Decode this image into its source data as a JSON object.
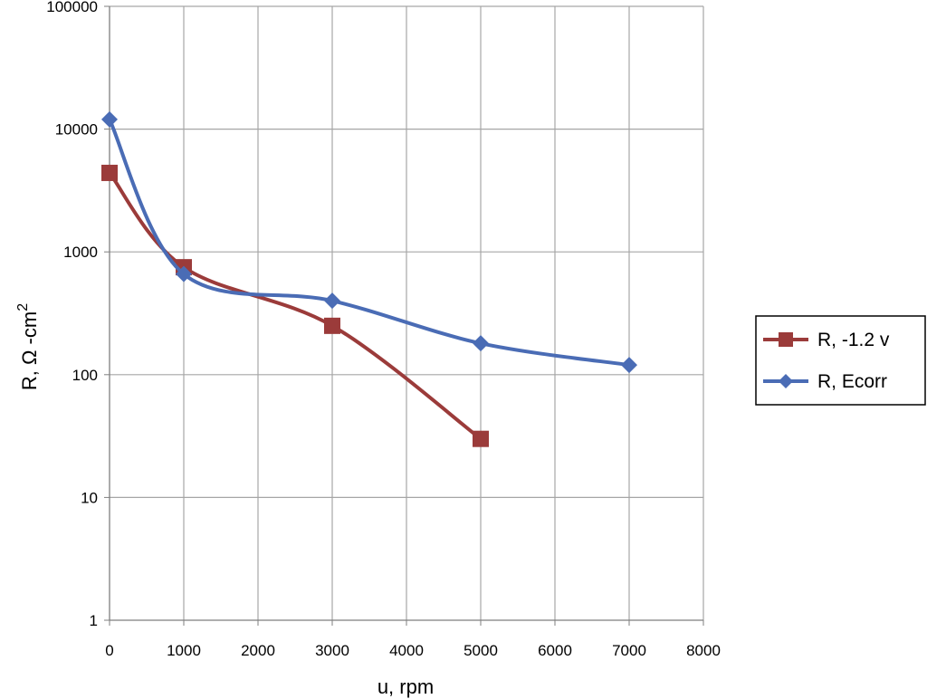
{
  "chart_data": {
    "type": "line",
    "title": "",
    "xlabel": "u, rpm",
    "ylabel": {
      "main": "R, Ω -cm",
      "superscript": "2"
    },
    "xlim": [
      0,
      8000
    ],
    "ylim": [
      1,
      100000
    ],
    "yscale": "log",
    "grid": true,
    "legend_position": "right",
    "x_ticks": [
      "0",
      "1000",
      "2000",
      "3000",
      "4000",
      "5000",
      "6000",
      "7000",
      "8000"
    ],
    "y_ticks": [
      "1",
      "10",
      "100",
      "1000",
      "10000",
      "100000"
    ],
    "series": [
      {
        "name": "R, -1.2 v",
        "color": "#9b3b3a",
        "marker": "square",
        "x": [
          0,
          1000,
          3000,
          5000
        ],
        "y": [
          4400,
          750,
          250,
          30
        ]
      },
      {
        "name": "R, Ecorr",
        "color": "#4a6cb5",
        "marker": "diamond",
        "x": [
          0,
          1000,
          3000,
          5000,
          7000
        ],
        "y": [
          12000,
          660,
          400,
          180,
          120
        ]
      }
    ]
  }
}
